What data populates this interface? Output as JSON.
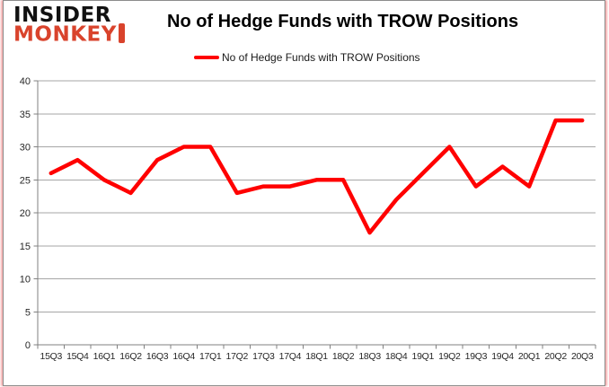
{
  "brand": {
    "line1": "INSIDER",
    "line2": "MONKEY",
    "accent_color": "#d9432c"
  },
  "header": {
    "title": "No of Hedge Funds with TROW Positions"
  },
  "legend": {
    "label": "No of Hedge Funds with TROW Positions",
    "color": "#ff0000"
  },
  "chart_data": {
    "type": "line",
    "title": "No of Hedge Funds with TROW Positions",
    "categories": [
      "15Q3",
      "15Q4",
      "16Q1",
      "16Q2",
      "16Q3",
      "16Q4",
      "17Q1",
      "17Q2",
      "17Q3",
      "17Q4",
      "18Q1",
      "18Q2",
      "18Q3",
      "18Q4",
      "19Q1",
      "19Q2",
      "19Q3",
      "19Q4",
      "20Q1",
      "20Q2",
      "20Q3"
    ],
    "series": [
      {
        "name": "No of Hedge Funds with TROW Positions",
        "color": "#ff0000",
        "values": [
          26,
          28,
          25,
          23,
          28,
          30,
          30,
          23,
          24,
          24,
          25,
          25,
          17,
          22,
          26,
          30,
          24,
          27,
          24,
          34,
          34
        ]
      }
    ],
    "xlabel": "",
    "ylabel": "",
    "ylim": [
      0,
      40
    ],
    "ytick_step": 5,
    "grid": true,
    "legend_position": "top-center"
  },
  "style": {
    "gridline_color": "#a6a6a6",
    "axis_color": "#808080",
    "tick_label_color": "#262626",
    "line_width": 4.5
  }
}
